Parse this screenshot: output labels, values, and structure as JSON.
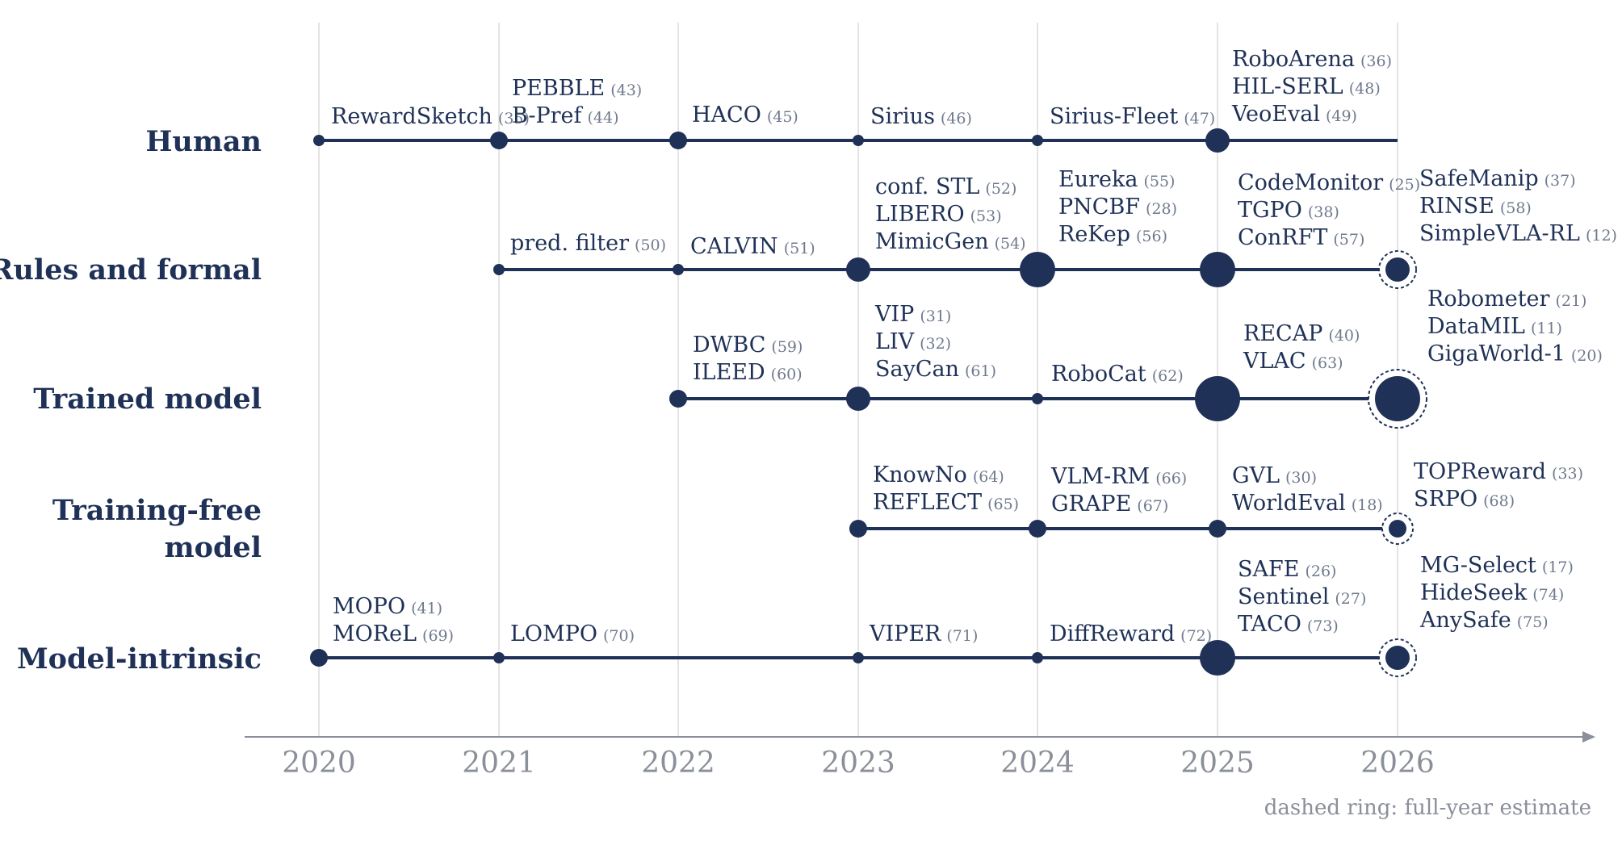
{
  "years": [
    "2020",
    "2021",
    "2022",
    "2023",
    "2024",
    "2025",
    "2026"
  ],
  "colors": {
    "line": "#1f3157",
    "label": "#1f3157",
    "cite": "#6f7a8e",
    "grid": "#dcdcdc",
    "axis": "#8a8f99"
  },
  "note": "dashed ring: full-year estimate",
  "rows": [
    {
      "label_lines": [
        "Human"
      ],
      "span": [
        "2020",
        "2026"
      ],
      "nodes": [
        {
          "year": "2020",
          "size": "tiny",
          "dashed": false
        },
        {
          "year": "2021",
          "size": "small",
          "dashed": false
        },
        {
          "year": "2022",
          "size": "small",
          "dashed": false
        },
        {
          "year": "2023",
          "size": "tiny",
          "dashed": false
        },
        {
          "year": "2024",
          "size": "tiny",
          "dashed": false
        },
        {
          "year": "2025",
          "size": "medium",
          "dashed": false
        }
      ],
      "groups": [
        {
          "year": "2020",
          "papers": [
            {
              "name": "RewardSketch",
              "cite": "(35)"
            }
          ]
        },
        {
          "year": "2021",
          "papers": [
            {
              "name": "PEBBLE",
              "cite": "(43)"
            },
            {
              "name": "B-Pref",
              "cite": "(44)"
            }
          ]
        },
        {
          "year": "2022",
          "papers": [
            {
              "name": "HACO",
              "cite": "(45)"
            }
          ]
        },
        {
          "year": "2023",
          "papers": [
            {
              "name": "Sirius",
              "cite": "(46)"
            }
          ]
        },
        {
          "year": "2024",
          "papers": [
            {
              "name": "Sirius-Fleet",
              "cite": "(47)"
            }
          ]
        },
        {
          "year": "2025",
          "papers": [
            {
              "name": "RoboArena",
              "cite": "(36)"
            },
            {
              "name": "HIL-SERL",
              "cite": "(48)"
            },
            {
              "name": "VeoEval",
              "cite": "(49)"
            }
          ]
        }
      ]
    },
    {
      "label_lines": [
        "Rules and formal"
      ],
      "span": [
        "2021",
        "2026"
      ],
      "nodes": [
        {
          "year": "2021",
          "size": "tiny",
          "dashed": false
        },
        {
          "year": "2022",
          "size": "tiny",
          "dashed": false
        },
        {
          "year": "2023",
          "size": "medium",
          "dashed": false
        },
        {
          "year": "2024",
          "size": "large",
          "dashed": false
        },
        {
          "year": "2025",
          "size": "large",
          "dashed": false
        },
        {
          "year": "2026",
          "size": "medium",
          "dashed": true
        }
      ],
      "groups": [
        {
          "year": "2021",
          "papers": [
            {
              "name": "pred. filter",
              "cite": "(50)"
            }
          ]
        },
        {
          "year": "2022",
          "papers": [
            {
              "name": "CALVIN",
              "cite": "(51)"
            }
          ]
        },
        {
          "year": "2023",
          "papers": [
            {
              "name": "conf. STL",
              "cite": "(52)"
            },
            {
              "name": "LIBERO",
              "cite": "(53)"
            },
            {
              "name": "MimicGen",
              "cite": "(54)"
            }
          ]
        },
        {
          "year": "2024",
          "papers": [
            {
              "name": "Eureka",
              "cite": "(55)"
            },
            {
              "name": "PNCBF",
              "cite": "(28)"
            },
            {
              "name": "ReKep",
              "cite": "(56)"
            }
          ]
        },
        {
          "year": "2025",
          "papers": [
            {
              "name": "CodeMonitor",
              "cite": "(25)"
            },
            {
              "name": "TGPO",
              "cite": "(38)"
            },
            {
              "name": "ConRFT",
              "cite": "(57)"
            }
          ]
        },
        {
          "year": "2026",
          "papers": [
            {
              "name": "SafeManip",
              "cite": "(37)"
            },
            {
              "name": "RINSE",
              "cite": "(58)"
            },
            {
              "name": "SimpleVLA-RL",
              "cite": "(12)"
            }
          ]
        }
      ]
    },
    {
      "label_lines": [
        "Trained model"
      ],
      "span": [
        "2022",
        "2026"
      ],
      "nodes": [
        {
          "year": "2022",
          "size": "small",
          "dashed": false
        },
        {
          "year": "2023",
          "size": "medium",
          "dashed": false
        },
        {
          "year": "2024",
          "size": "tiny",
          "dashed": false
        },
        {
          "year": "2025",
          "size": "xlarge",
          "dashed": false
        },
        {
          "year": "2026",
          "size": "xlarge",
          "dashed": true
        }
      ],
      "groups": [
        {
          "year": "2022",
          "papers": [
            {
              "name": "DWBC",
              "cite": "(59)"
            },
            {
              "name": "ILEED",
              "cite": "(60)"
            }
          ]
        },
        {
          "year": "2023",
          "papers": [
            {
              "name": "VIP",
              "cite": "(31)"
            },
            {
              "name": "LIV",
              "cite": "(32)"
            },
            {
              "name": "SayCan",
              "cite": "(61)"
            }
          ]
        },
        {
          "year": "2024",
          "papers": [
            {
              "name": "RoboCat",
              "cite": "(62)"
            }
          ]
        },
        {
          "year": "2025",
          "papers": [
            {
              "name": "RECAP",
              "cite": "(40)"
            },
            {
              "name": "VLAC",
              "cite": "(63)"
            }
          ]
        },
        {
          "year": "2026",
          "papers": [
            {
              "name": "Robometer",
              "cite": "(21)"
            },
            {
              "name": "DataMIL",
              "cite": "(11)"
            },
            {
              "name": "GigaWorld-1",
              "cite": "(20)"
            }
          ]
        }
      ]
    },
    {
      "label_lines": [
        "Training-free",
        "model"
      ],
      "span": [
        "2023",
        "2026"
      ],
      "nodes": [
        {
          "year": "2023",
          "size": "small",
          "dashed": false
        },
        {
          "year": "2024",
          "size": "small",
          "dashed": false
        },
        {
          "year": "2025",
          "size": "small",
          "dashed": false
        },
        {
          "year": "2026",
          "size": "small",
          "dashed": true
        }
      ],
      "groups": [
        {
          "year": "2023",
          "papers": [
            {
              "name": "KnowNo",
              "cite": "(64)"
            },
            {
              "name": "REFLECT",
              "cite": "(65)"
            }
          ]
        },
        {
          "year": "2024",
          "papers": [
            {
              "name": "VLM-RM",
              "cite": "(66)"
            },
            {
              "name": "GRAPE",
              "cite": "(67)"
            }
          ]
        },
        {
          "year": "2025",
          "papers": [
            {
              "name": "GVL",
              "cite": "(30)"
            },
            {
              "name": "WorldEval",
              "cite": "(18)"
            }
          ]
        },
        {
          "year": "2026",
          "papers": [
            {
              "name": "TOPReward",
              "cite": "(33)"
            },
            {
              "name": "SRPO",
              "cite": "(68)"
            }
          ]
        }
      ]
    },
    {
      "label_lines": [
        "Model-intrinsic"
      ],
      "span": [
        "2020",
        "2026"
      ],
      "nodes": [
        {
          "year": "2020",
          "size": "small",
          "dashed": false
        },
        {
          "year": "2021",
          "size": "tiny",
          "dashed": false
        },
        {
          "year": "2023",
          "size": "tiny",
          "dashed": false
        },
        {
          "year": "2024",
          "size": "tiny",
          "dashed": false
        },
        {
          "year": "2025",
          "size": "large",
          "dashed": false
        },
        {
          "year": "2026",
          "size": "medium",
          "dashed": true
        }
      ],
      "groups": [
        {
          "year": "2020",
          "papers": [
            {
              "name": "MOPO",
              "cite": "(41)"
            },
            {
              "name": "MOReL",
              "cite": "(69)"
            }
          ]
        },
        {
          "year": "2021",
          "papers": [
            {
              "name": "LOMPO",
              "cite": "(70)"
            }
          ]
        },
        {
          "year": "2023",
          "papers": [
            {
              "name": "VIPER",
              "cite": "(71)"
            }
          ]
        },
        {
          "year": "2024",
          "papers": [
            {
              "name": "DiffReward",
              "cite": "(72)"
            }
          ]
        },
        {
          "year": "2025",
          "papers": [
            {
              "name": "SAFE",
              "cite": "(26)"
            },
            {
              "name": "Sentinel",
              "cite": "(27)"
            },
            {
              "name": "TACO",
              "cite": "(73)"
            }
          ]
        },
        {
          "year": "2026",
          "papers": [
            {
              "name": "MG-Select",
              "cite": "(17)"
            },
            {
              "name": "HideSeek",
              "cite": "(74)"
            },
            {
              "name": "AnySafe",
              "cite": "(75)"
            }
          ]
        }
      ]
    }
  ]
}
